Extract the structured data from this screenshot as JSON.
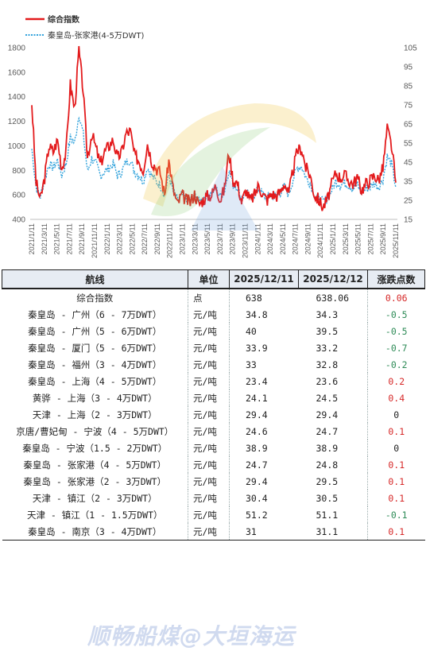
{
  "chart_data": {
    "type": "line",
    "legend": [
      "综合指数",
      "秦皇岛-张家港(4-5万DWT)"
    ],
    "legend_position": "top-left",
    "colors": {
      "composite": "#e31a1c",
      "qhd_zjg": "#33a3dc"
    },
    "y_left": {
      "ylim": [
        400,
        1800
      ],
      "ticks": [
        "400",
        "600",
        "800",
        "1000",
        "1200",
        "1400",
        "1600",
        "1800"
      ]
    },
    "y_right": {
      "ylim": [
        15,
        105
      ],
      "ticks": [
        "15",
        "25",
        "35",
        "45",
        "55",
        "65",
        "75",
        "85",
        "95",
        "105"
      ]
    },
    "x_ticks": [
      "2021/1/11",
      "2021/3/11",
      "2021/5/11",
      "2021/7/11",
      "2021/9/11",
      "2021/11/11",
      "2022/1/11",
      "2022/3/11",
      "2022/5/11",
      "2022/7/11",
      "2022/9/11",
      "2022/11/11",
      "2023/1/11",
      "2023/3/11",
      "2023/5/11",
      "2023/7/11",
      "2023/9/11",
      "2023/11/11",
      "2024/1/11",
      "2024/3/11",
      "2024/5/11",
      "2024/7/11",
      "2024/9/11",
      "2024/11/11",
      "2025/1/11",
      "2025/3/11",
      "2025/5/11",
      "2025/7/11",
      "2025/9/11",
      "2025/11/11"
    ],
    "composite_monthly": [
      1350,
      700,
      560,
      740,
      1000,
      950,
      1050,
      820,
      950,
      1500,
      1300,
      1780,
      1450,
      900,
      1100,
      980,
      850,
      950,
      1000,
      1050,
      900,
      950,
      1100,
      1120,
      920,
      880,
      800,
      1020,
      880,
      820,
      780,
      600,
      880,
      650,
      520,
      600,
      560,
      540,
      610,
      520,
      560,
      590,
      600,
      680,
      560,
      650,
      950,
      720,
      700,
      540,
      640,
      550,
      600,
      680,
      600,
      560,
      610,
      590,
      620,
      700,
      600,
      800,
      960,
      980,
      820,
      760,
      600,
      560,
      500,
      560,
      680,
      780,
      740,
      760,
      720,
      690,
      740,
      640,
      690,
      720,
      760,
      720,
      820,
      1140,
      1000,
      700
    ],
    "zjg_monthly": [
      52,
      32,
      27,
      36,
      44,
      42,
      46,
      38,
      44,
      58,
      55,
      70,
      60,
      40,
      47,
      44,
      38,
      40,
      42,
      44,
      38,
      40,
      45,
      46,
      40,
      38,
      35,
      42,
      38,
      35,
      33,
      28,
      38,
      30,
      25,
      28,
      26,
      25,
      28,
      24,
      26,
      28,
      29,
      31,
      27,
      30,
      41,
      33,
      32,
      25,
      30,
      26,
      28,
      31,
      28,
      26,
      28,
      27,
      29,
      32,
      28,
      36,
      42,
      43,
      37,
      34,
      28,
      26,
      24,
      26,
      30,
      35,
      33,
      34,
      33,
      31,
      33,
      29,
      31,
      32,
      34,
      32,
      36,
      48,
      44,
      32
    ]
  },
  "table": {
    "headers": {
      "route": "航线",
      "unit": "单位",
      "d1": "2025/12/11",
      "d2": "2025/12/12",
      "chg": "涨跌点数"
    },
    "rows": [
      {
        "route": "综合指数",
        "unit": "点",
        "d1": "638",
        "d2": "638.06",
        "chg": "0.06",
        "dir": "pos"
      },
      {
        "route": "秦皇岛 - 广州（6 - 7万DWT）",
        "unit": "元/吨",
        "d1": "34.8",
        "d2": "34.3",
        "chg": "-0.5",
        "dir": "neg"
      },
      {
        "route": "秦皇岛 - 广州（5 - 6万DWT）",
        "unit": "元/吨",
        "d1": "40",
        "d2": "39.5",
        "chg": "-0.5",
        "dir": "neg"
      },
      {
        "route": "秦皇岛 - 厦门（5 - 6万DWT）",
        "unit": "元/吨",
        "d1": "33.9",
        "d2": "33.2",
        "chg": "-0.7",
        "dir": "neg"
      },
      {
        "route": "秦皇岛 - 福州（3 - 4万DWT）",
        "unit": "元/吨",
        "d1": "33",
        "d2": "32.8",
        "chg": "-0.2",
        "dir": "neg"
      },
      {
        "route": "秦皇岛 - 上海（4 - 5万DWT）",
        "unit": "元/吨",
        "d1": "23.4",
        "d2": "23.6",
        "chg": "0.2",
        "dir": "pos"
      },
      {
        "route": "黄骅 - 上海（3 - 4万DWT）",
        "unit": "元/吨",
        "d1": "24.1",
        "d2": "24.5",
        "chg": "0.4",
        "dir": "pos"
      },
      {
        "route": "天津 - 上海（2 - 3万DWT）",
        "unit": "元/吨",
        "d1": "29.4",
        "d2": "29.4",
        "chg": "0",
        "dir": "zero"
      },
      {
        "route": "京唐/曹妃甸 - 宁波（4 - 5万DWT）",
        "unit": "元/吨",
        "d1": "24.6",
        "d2": "24.7",
        "chg": "0.1",
        "dir": "pos"
      },
      {
        "route": "秦皇岛 - 宁波（1.5 - 2万DWT）",
        "unit": "元/吨",
        "d1": "38.9",
        "d2": "38.9",
        "chg": "0",
        "dir": "zero"
      },
      {
        "route": "秦皇岛 - 张家港（4 - 5万DWT）",
        "unit": "元/吨",
        "d1": "24.7",
        "d2": "24.8",
        "chg": "0.1",
        "dir": "pos"
      },
      {
        "route": "秦皇岛 - 张家港（2 - 3万DWT）",
        "unit": "元/吨",
        "d1": "29.4",
        "d2": "29.5",
        "chg": "0.1",
        "dir": "pos"
      },
      {
        "route": "天津 - 镇江（2 - 3万DWT）",
        "unit": "元/吨",
        "d1": "30.4",
        "d2": "30.5",
        "chg": "0.1",
        "dir": "pos"
      },
      {
        "route": "天津 - 镇江（1 - 1.5万DWT）",
        "unit": "元/吨",
        "d1": "51.2",
        "d2": "51.1",
        "chg": "-0.1",
        "dir": "neg"
      },
      {
        "route": "秦皇岛 - 南京（3 - 4万DWT）",
        "unit": "元/吨",
        "d1": "31",
        "d2": "31.1",
        "chg": "0.1",
        "dir": "pos"
      }
    ]
  },
  "watermark": "顺畅船煤@大垣海运"
}
